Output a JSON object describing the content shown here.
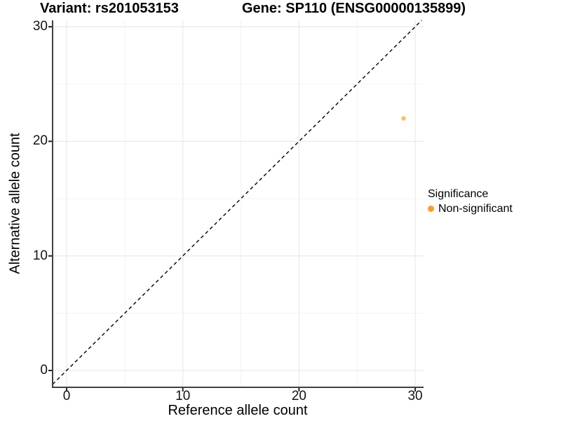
{
  "chart_data": {
    "type": "scatter",
    "title_left": "Variant: rs201053153",
    "title_right": "Gene: SP110 (ENSG00000135899)",
    "xlabel": "Reference allele count",
    "ylabel": "Alternative allele count",
    "xlim": [
      -1.21,
      30.72
    ],
    "ylim": [
      -1.47,
      30.56
    ],
    "x_ticks": [
      0,
      10,
      20,
      30
    ],
    "y_ticks": [
      0,
      10,
      20,
      30
    ],
    "x_minor": [
      5,
      15,
      25
    ],
    "y_minor": [
      5,
      15,
      25
    ],
    "grid": true,
    "abline": {
      "slope": 1,
      "intercept": 0,
      "style": "dashed",
      "color": "#000000"
    },
    "series": [
      {
        "name": "Non-significant",
        "color": "#FC9E24",
        "point_opacity": 0.7,
        "points": [
          {
            "x": 29,
            "y": 22
          }
        ]
      }
    ],
    "legend": {
      "title": "Significance",
      "position": "right",
      "items": [
        {
          "label": "Non-significant",
          "color": "#FC9E24"
        }
      ]
    },
    "colors": {
      "grid_major": "#E9E9E9",
      "grid_minor": "#F3F3F3",
      "axis_line": "#404040",
      "tick_mark": "#222222"
    }
  }
}
